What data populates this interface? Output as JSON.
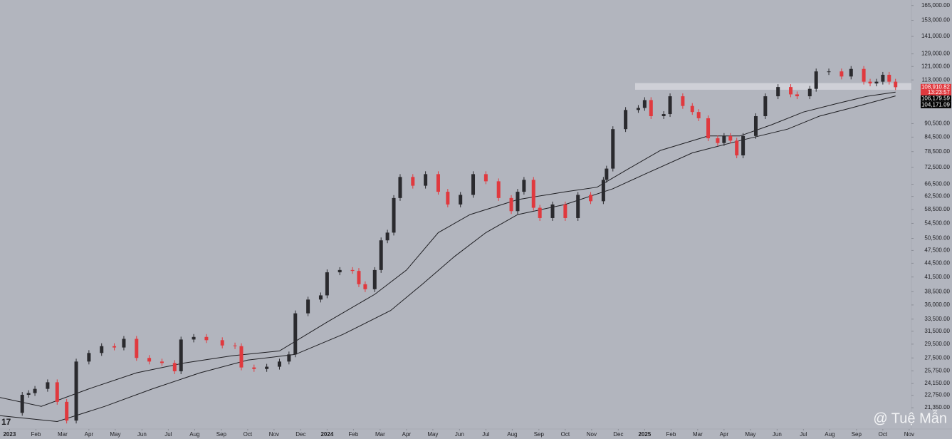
{
  "chart_data": {
    "type": "candlestick",
    "scale": "log",
    "background": "#b2b5be",
    "up_color": "#2a2a2e",
    "down_color": "#e0393e",
    "xlim": [
      2022.97,
      2025.84
    ],
    "ylim": [
      19300,
      166000
    ],
    "xticks": [
      {
        "value": 2023,
        "label": "2023"
      },
      {
        "value": 2023.083,
        "label": "Feb"
      },
      {
        "value": 2023.167,
        "label": "Mar"
      },
      {
        "value": 2023.25,
        "label": "Apr"
      },
      {
        "value": 2023.333,
        "label": "May"
      },
      {
        "value": 2023.417,
        "label": "Jun"
      },
      {
        "value": 2023.5,
        "label": "Jul"
      },
      {
        "value": 2023.583,
        "label": "Aug"
      },
      {
        "value": 2023.667,
        "label": "Sep"
      },
      {
        "value": 2023.75,
        "label": "Oct"
      },
      {
        "value": 2023.833,
        "label": "Nov"
      },
      {
        "value": 2023.917,
        "label": "Dec"
      },
      {
        "value": 2024,
        "label": "2024"
      },
      {
        "value": 2024.083,
        "label": "Feb"
      },
      {
        "value": 2024.167,
        "label": "Mar"
      },
      {
        "value": 2024.25,
        "label": "Apr"
      },
      {
        "value": 2024.333,
        "label": "May"
      },
      {
        "value": 2024.417,
        "label": "Jun"
      },
      {
        "value": 2024.5,
        "label": "Jul"
      },
      {
        "value": 2024.583,
        "label": "Aug"
      },
      {
        "value": 2024.667,
        "label": "Sep"
      },
      {
        "value": 2024.75,
        "label": "Oct"
      },
      {
        "value": 2024.833,
        "label": "Nov"
      },
      {
        "value": 2024.917,
        "label": "Dec"
      },
      {
        "value": 2025,
        "label": "2025"
      },
      {
        "value": 2025.083,
        "label": "Feb"
      },
      {
        "value": 2025.167,
        "label": "Mar"
      },
      {
        "value": 2025.25,
        "label": "Apr"
      },
      {
        "value": 2025.333,
        "label": "May"
      },
      {
        "value": 2025.417,
        "label": "Jun"
      },
      {
        "value": 2025.5,
        "label": "Jul"
      },
      {
        "value": 2025.583,
        "label": "Aug"
      },
      {
        "value": 2025.667,
        "label": "Sep"
      },
      {
        "value": 2025.75,
        "label": "Oct"
      },
      {
        "value": 2025.833,
        "label": "Nov"
      }
    ],
    "yticks": [
      {
        "value": 165000,
        "label": "165,000.00"
      },
      {
        "value": 153000,
        "label": "153,000.00"
      },
      {
        "value": 141000,
        "label": "141,000.00"
      },
      {
        "value": 129000,
        "label": "129,000.00"
      },
      {
        "value": 121000,
        "label": "121,000.00"
      },
      {
        "value": 113000,
        "label": "113,000.00"
      },
      {
        "value": 90500,
        "label": "90,500.00"
      },
      {
        "value": 84500,
        "label": "84,500.00"
      },
      {
        "value": 78500,
        "label": "78,500.00"
      },
      {
        "value": 72500,
        "label": "72,500.00"
      },
      {
        "value": 66500,
        "label": "66,500.00"
      },
      {
        "value": 62500,
        "label": "62,500.00"
      },
      {
        "value": 58500,
        "label": "58,500.00"
      },
      {
        "value": 54500,
        "label": "54,500.00"
      },
      {
        "value": 50500,
        "label": "50,500.00"
      },
      {
        "value": 47500,
        "label": "47,500.00"
      },
      {
        "value": 44500,
        "label": "44,500.00"
      },
      {
        "value": 41500,
        "label": "41,500.00"
      },
      {
        "value": 38500,
        "label": "38,500.00"
      },
      {
        "value": 36000,
        "label": "36,000.00"
      },
      {
        "value": 33500,
        "label": "33,500.00"
      },
      {
        "value": 31500,
        "label": "31,500.00"
      },
      {
        "value": 29500,
        "label": "29,500.00"
      },
      {
        "value": 27500,
        "label": "27,500.00"
      },
      {
        "value": 25750,
        "label": "25,750.00"
      },
      {
        "value": 24150,
        "label": "24,150.00"
      },
      {
        "value": 22750,
        "label": "22,750.00"
      },
      {
        "value": 21350,
        "label": "21,350.00"
      }
    ],
    "price": {
      "x": [
        2023.02,
        2023.04,
        2023.06,
        2023.08,
        2023.12,
        2023.15,
        2023.18,
        2023.21,
        2023.25,
        2023.29,
        2023.33,
        2023.36,
        2023.4,
        2023.44,
        2023.48,
        2023.52,
        2023.54,
        2023.58,
        2023.62,
        2023.67,
        2023.71,
        2023.73,
        2023.77,
        2023.81,
        2023.85,
        2023.88,
        2023.9,
        2023.94,
        2023.98,
        2024.0,
        2024.04,
        2024.08,
        2024.1,
        2024.12,
        2024.15,
        2024.17,
        2024.19,
        2024.21,
        2024.23,
        2024.27,
        2024.31,
        2024.35,
        2024.38,
        2024.42,
        2024.46,
        2024.5,
        2024.54,
        2024.58,
        2024.6,
        2024.62,
        2024.65,
        2024.67,
        2024.71,
        2024.75,
        2024.79,
        2024.83,
        2024.87,
        2024.88,
        2024.9,
        2024.94,
        2024.98,
        2025.0,
        2025.02,
        2025.06,
        2025.08,
        2025.12,
        2025.15,
        2025.17,
        2025.2,
        2025.23,
        2025.25,
        2025.27,
        2025.29,
        2025.31,
        2025.35,
        2025.38,
        2025.42,
        2025.46,
        2025.48,
        2025.52,
        2025.54,
        2025.58,
        2025.62,
        2025.65,
        2025.69,
        2025.71,
        2025.73,
        2025.75,
        2025.77,
        2025.79
      ],
      "values": [
        20800,
        22800,
        23000,
        23500,
        24300,
        22000,
        20000,
        27000,
        28200,
        29200,
        29000,
        30300,
        27500,
        27000,
        26800,
        25700,
        30200,
        30600,
        30100,
        29300,
        29200,
        26200,
        26000,
        26300,
        27000,
        28000,
        34500,
        37000,
        37800,
        42500,
        43000,
        42800,
        40000,
        39000,
        43000,
        50000,
        52000,
        62000,
        69000,
        66000,
        70000,
        64000,
        60000,
        63000,
        70000,
        67500,
        62000,
        58000,
        64000,
        68000,
        59000,
        56000,
        60000,
        56000,
        63000,
        61000,
        68000,
        72000,
        88000,
        97000,
        98000,
        102000,
        94000,
        95000,
        104000,
        99000,
        96000,
        93000,
        84000,
        82000,
        85000,
        83000,
        77000,
        85000,
        94000,
        104000,
        109000,
        105000,
        104000,
        108000,
        118000,
        118000,
        115000,
        119500,
        112000,
        111000,
        112000,
        116000,
        112000,
        108910.82
      ]
    },
    "series": [
      {
        "color": "#1e1e22",
        "x": [
          2022.97,
          2023.1,
          2023.25,
          2023.4,
          2023.55,
          2023.7,
          2023.85,
          2024.0,
          2024.15,
          2024.25,
          2024.35,
          2024.45,
          2024.6,
          2024.75,
          2024.85,
          2024.95,
          2025.05,
          2025.2,
          2025.3,
          2025.4,
          2025.5,
          2025.6,
          2025.7,
          2025.79
        ],
        "values": [
          22500,
          21500,
          23500,
          25500,
          26800,
          27800,
          28500,
          33000,
          38000,
          43000,
          52000,
          57000,
          61500,
          64000,
          65500,
          72000,
          79000,
          85000,
          85000,
          90000,
          96000,
          100000,
          104000,
          106179.59
        ]
      },
      {
        "color": "#1e1e22",
        "x": [
          2022.97,
          2023.15,
          2023.3,
          2023.45,
          2023.6,
          2023.75,
          2023.9,
          2024.05,
          2024.2,
          2024.3,
          2024.4,
          2024.5,
          2024.6,
          2024.75,
          2024.9,
          2025.0,
          2025.15,
          2025.3,
          2025.45,
          2025.55,
          2025.65,
          2025.79
        ],
        "values": [
          20500,
          19900,
          21500,
          23500,
          25500,
          27200,
          28000,
          31000,
          35000,
          40000,
          46000,
          52000,
          57000,
          60000,
          65000,
          70000,
          78000,
          83000,
          88000,
          94000,
          98000,
          104171.09
        ]
      }
    ],
    "resistance_zone": {
      "x0": 2024.97,
      "ylim": [
        107500,
        111200
      ],
      "color": "#d3d5dc"
    },
    "price_tags": [
      {
        "value": 108910.82,
        "label": "108,910.82",
        "sublabel": "13:23:57",
        "color": "#e0393e"
      },
      {
        "value": 106179.59,
        "label": "106,179.59",
        "color": "#000000"
      },
      {
        "value": 104171.09,
        "label": "104,171.09",
        "color": "#000000"
      }
    ],
    "logo": "17",
    "watermark": "@ Tuệ Mẫn"
  }
}
